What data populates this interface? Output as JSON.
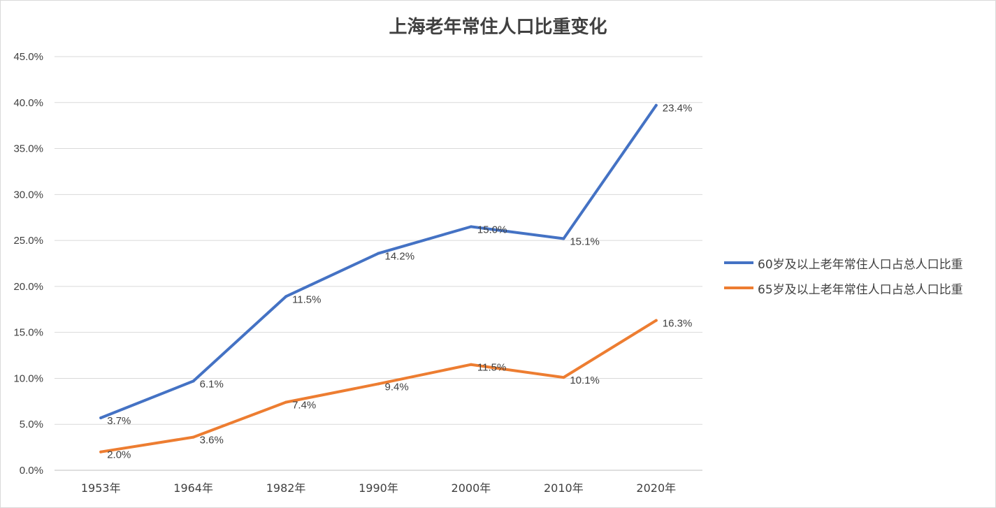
{
  "chart_data": {
    "type": "line",
    "title": "上海老年常住人口比重变化",
    "categories": [
      "1953年",
      "1964年",
      "1982年",
      "1990年",
      "2000年",
      "2010年",
      "2020年"
    ],
    "y_ticks": [
      "0.0%",
      "5.0%",
      "10.0%",
      "15.0%",
      "20.0%",
      "25.0%",
      "30.0%",
      "35.0%",
      "40.0%",
      "45.0%"
    ],
    "ylim": [
      0,
      45
    ],
    "grid": true,
    "legend_position": "right",
    "series": [
      {
        "name": "60岁及以上老年常住人口占总人口比重",
        "color": "#4472C4",
        "values": [
          5.7,
          9.7,
          18.9,
          23.6,
          26.5,
          25.2,
          39.7
        ],
        "data_labels": [
          "3.7%",
          "6.1%",
          "11.5%",
          "14.2%",
          "15.0%",
          "15.1%",
          "23.4%"
        ]
      },
      {
        "name": "65岁及以上老年常住人口占总人口比重",
        "color": "#ED7D31",
        "values": [
          2.0,
          3.6,
          7.4,
          9.4,
          11.5,
          10.1,
          16.3
        ],
        "data_labels": [
          "2.0%",
          "3.6%",
          "7.4%",
          "9.4%",
          "11.5%",
          "10.1%",
          "16.3%"
        ]
      }
    ]
  }
}
